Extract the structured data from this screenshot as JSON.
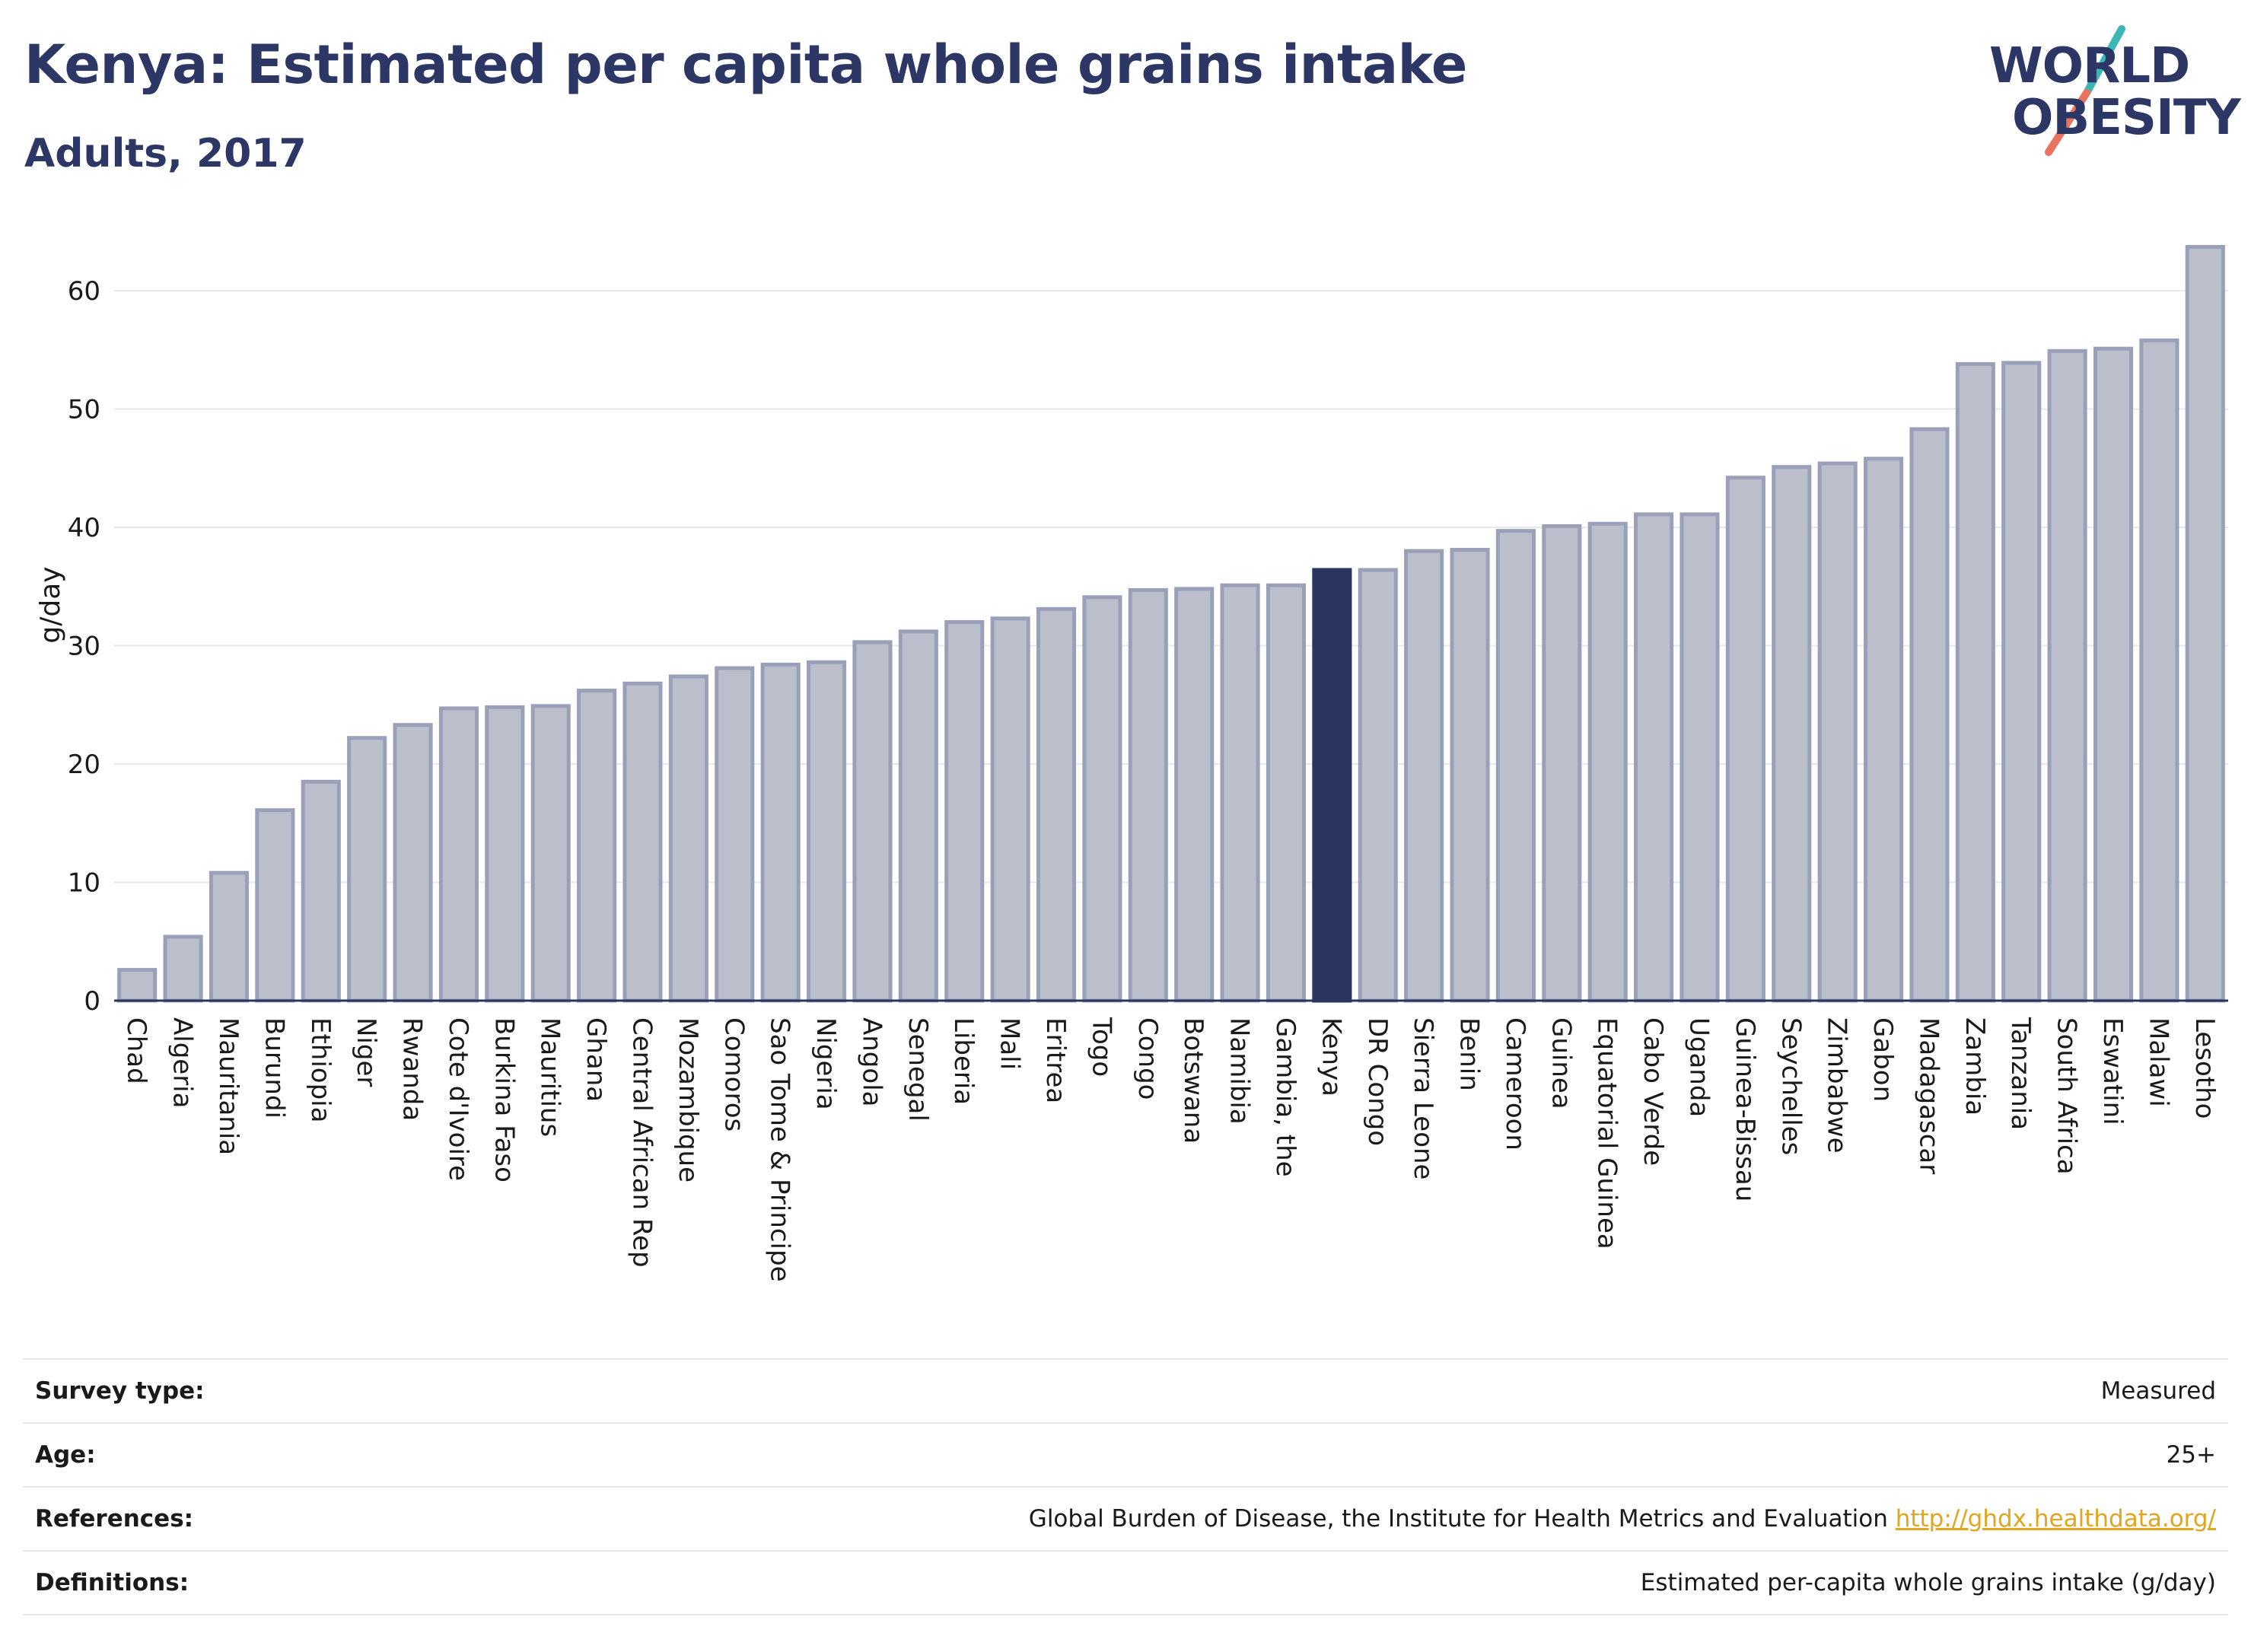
{
  "header": {
    "title": "Kenya: Estimated per capita whole grains intake",
    "subtitle": "Adults, 2017"
  },
  "logo": {
    "line1": "WORLD",
    "line2": "OBESITY"
  },
  "colors": {
    "bar": "#bbbfcc",
    "bar_border": "#9aa0b8",
    "highlight": "#2a3561",
    "grid": "#e6e8ee",
    "axis_line": "#2a3561",
    "link": "#e2a51e"
  },
  "chart_data": {
    "type": "bar",
    "ylabel": "g/day",
    "ylim": [
      0,
      65
    ],
    "yticks": [
      0,
      10,
      20,
      30,
      40,
      50,
      60
    ],
    "grid": true,
    "highlight": "Kenya",
    "categories": [
      "Chad",
      "Algeria",
      "Mauritania",
      "Burundi",
      "Ethiopia",
      "Niger",
      "Rwanda",
      "Cote d'Ivoire",
      "Burkina Faso",
      "Mauritius",
      "Ghana",
      "Central African Rep",
      "Mozambique",
      "Comoros",
      "Sao Tome & Principe",
      "Nigeria",
      "Angola",
      "Senegal",
      "Liberia",
      "Mali",
      "Eritrea",
      "Togo",
      "Congo",
      "Botswana",
      "Namibia",
      "Gambia, the",
      "Kenya",
      "DR Congo",
      "Sierra Leone",
      "Benin",
      "Cameroon",
      "Guinea",
      "Equatorial Guinea",
      "Cabo Verde",
      "Uganda",
      "Guinea-Bissau",
      "Seychelles",
      "Zimbabwe",
      "Gabon",
      "Madagascar",
      "Zambia",
      "Tanzania",
      "South Africa",
      "Eswatini",
      "Malawi",
      "Lesotho"
    ],
    "values": [
      2.6,
      5.4,
      10.8,
      16.1,
      18.5,
      22.2,
      23.3,
      24.7,
      24.8,
      24.9,
      26.2,
      26.8,
      27.4,
      28.1,
      28.4,
      28.6,
      30.3,
      31.2,
      32.0,
      32.3,
      33.1,
      34.1,
      34.7,
      34.8,
      35.1,
      35.1,
      36.4,
      36.4,
      38.0,
      38.1,
      39.7,
      40.1,
      40.3,
      41.1,
      41.1,
      44.2,
      45.1,
      45.4,
      45.8,
      48.3,
      53.8,
      53.9,
      54.9,
      55.1,
      55.8,
      63.7
    ]
  },
  "meta": [
    {
      "label": "Survey type:",
      "value": "Measured"
    },
    {
      "label": "Age:",
      "value": "25+"
    },
    {
      "label": "References:",
      "value": "Global Burden of Disease, the Institute for Health Metrics and Evaluation",
      "link": "http://ghdx.healthdata.org/"
    },
    {
      "label": "Definitions:",
      "value": "Estimated per-capita whole grains intake (g/day)"
    }
  ]
}
